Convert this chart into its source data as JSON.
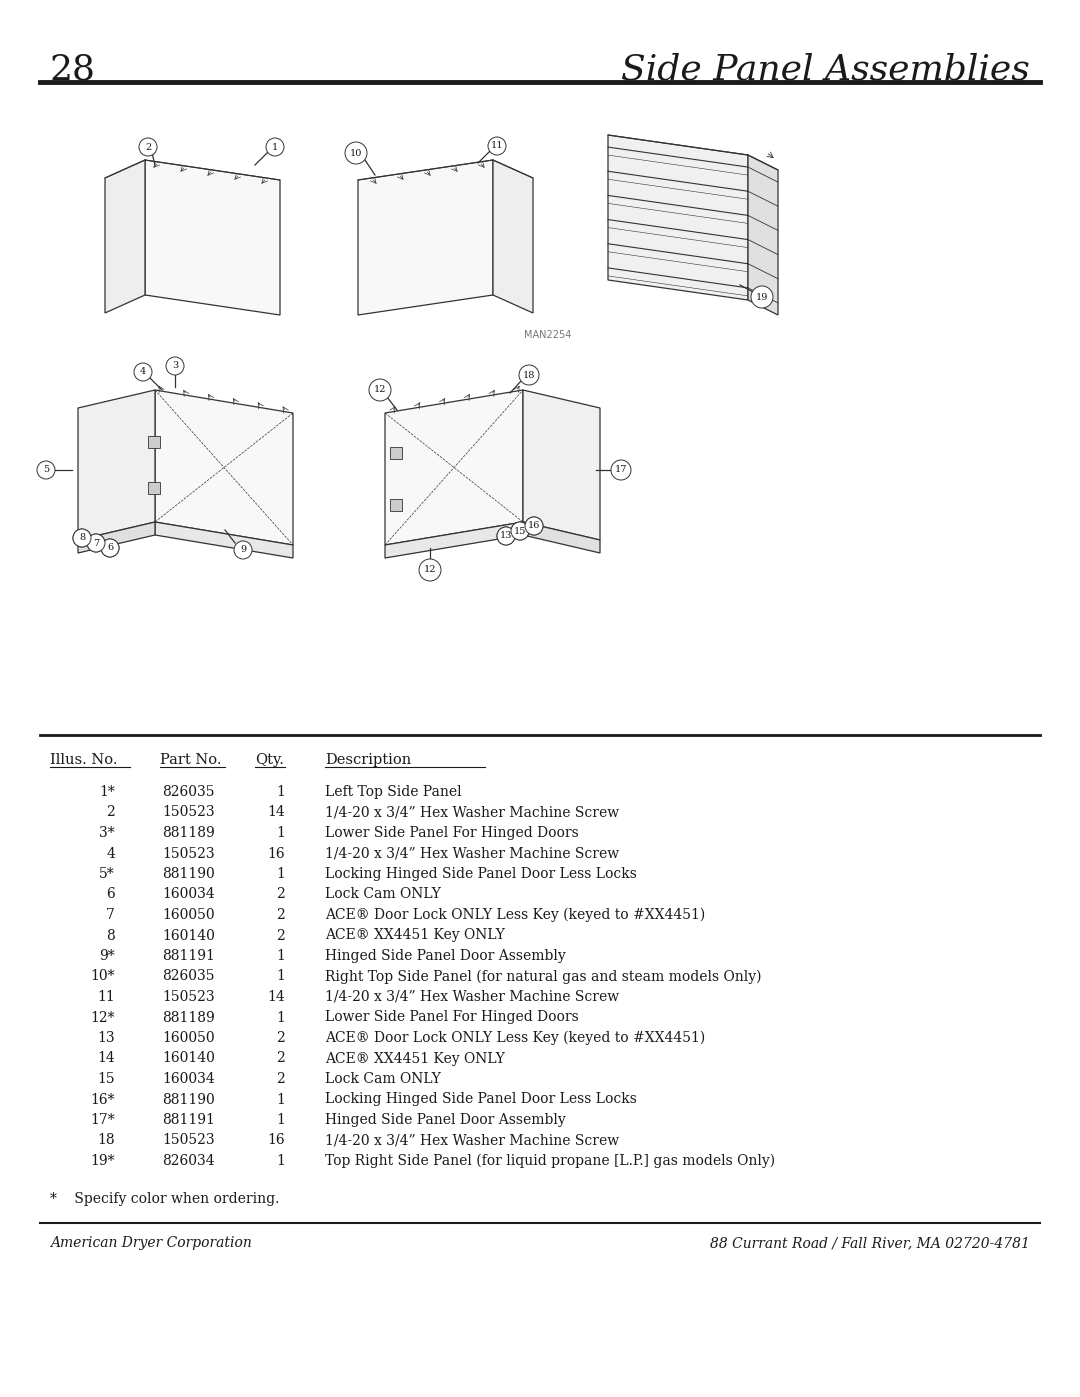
{
  "page_number": "28",
  "page_title": "Side Panel Assemblies",
  "diagram_label": "MAN2254",
  "background_color": "#ffffff",
  "text_color": "#1a1a1a",
  "line_color": "#333333",
  "table_headers": [
    "Illus. No.",
    "Part No.",
    "Qty.",
    "Description"
  ],
  "table_data": [
    [
      "1*",
      "826035",
      "1",
      "Left Top Side Panel"
    ],
    [
      "2",
      "150523",
      "14",
      "1/4-20 x 3/4” Hex Washer Machine Screw"
    ],
    [
      "3*",
      "881189",
      "1",
      "Lower Side Panel For Hinged Doors"
    ],
    [
      "4",
      "150523",
      "16",
      "1/4-20 x 3/4” Hex Washer Machine Screw"
    ],
    [
      "5*",
      "881190",
      "1",
      "Locking Hinged Side Panel Door Less Locks"
    ],
    [
      "6",
      "160034",
      "2",
      "Lock Cam ONLY"
    ],
    [
      "7",
      "160050",
      "2",
      "ACE® Door Lock ONLY Less Key (keyed to #XX4451)"
    ],
    [
      "8",
      "160140",
      "2",
      "ACE® XX4451 Key ONLY"
    ],
    [
      "9*",
      "881191",
      "1",
      "Hinged Side Panel Door Assembly"
    ],
    [
      "10*",
      "826035",
      "1",
      "Right Top Side Panel (for natural gas and steam models Only)"
    ],
    [
      "11",
      "150523",
      "14",
      "1/4-20 x 3/4” Hex Washer Machine Screw"
    ],
    [
      "12*",
      "881189",
      "1",
      "Lower Side Panel For Hinged Doors"
    ],
    [
      "13",
      "160050",
      "2",
      "ACE® Door Lock ONLY Less Key (keyed to #XX4451)"
    ],
    [
      "14",
      "160140",
      "2",
      "ACE® XX4451 Key ONLY"
    ],
    [
      "15",
      "160034",
      "2",
      "Lock Cam ONLY"
    ],
    [
      "16*",
      "881190",
      "1",
      "Locking Hinged Side Panel Door Less Locks"
    ],
    [
      "17*",
      "881191",
      "1",
      "Hinged Side Panel Door Assembly"
    ],
    [
      "18",
      "150523",
      "16",
      "1/4-20 x 3/4” Hex Washer Machine Screw"
    ],
    [
      "19*",
      "826034",
      "1",
      "Top Right Side Panel (for liquid propane [L.P.] gas models Only)"
    ]
  ],
  "footnote": "*    Specify color when ordering.",
  "footer_left": "American Dryer Corporation",
  "footer_right": "88 Currant Road / Fall River, MA 02720-4781"
}
